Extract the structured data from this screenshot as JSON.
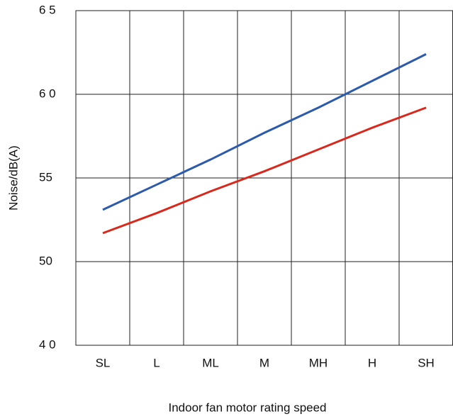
{
  "chart_data": {
    "type": "line",
    "x_label": "Indoor fan motor rating speed",
    "y_label": "Noise/dB(A)",
    "categories": [
      "SL",
      "L",
      "ML",
      "M",
      "MH",
      "H",
      "SH"
    ],
    "series": [
      {
        "color": "#2e5aa8",
        "values": [
          53.1,
          54.6,
          56.1,
          57.7,
          59.2,
          60.8,
          62.4
        ]
      },
      {
        "color": "#d42a20",
        "values": [
          51.7,
          52.9,
          54.2,
          55.4,
          56.7,
          58.0,
          59.2
        ]
      }
    ],
    "ylim": [
      40,
      65
    ],
    "yticks": [
      {
        "value": 40,
        "label": "4 0"
      },
      50,
      55,
      {
        "value": 60,
        "label": "6 0"
      },
      {
        "value": 65,
        "label": "6 5"
      }
    ],
    "grid": true
  }
}
